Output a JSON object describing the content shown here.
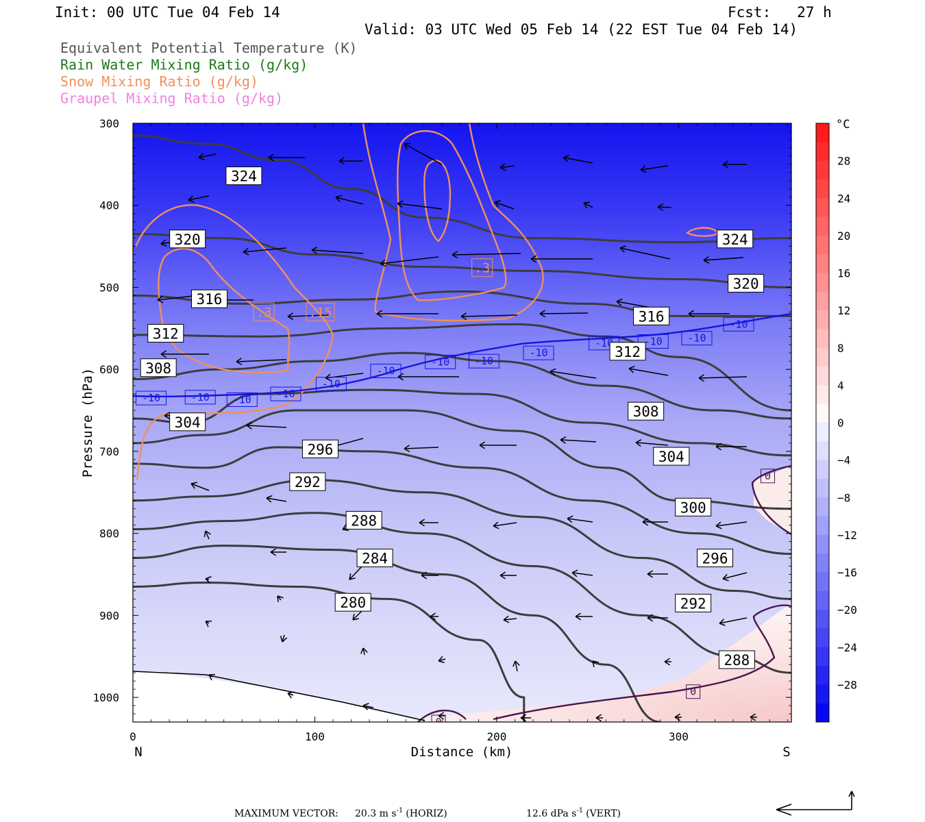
{
  "header": {
    "init": "Init: 00 UTC Tue 04 Feb 14",
    "fcst": "Fcst:   27 h",
    "valid": "Valid: 03 UTC Wed 05 Feb 14 (22 EST Tue 04 Feb 14)"
  },
  "legend": [
    {
      "label": "Equivalent Potential Temperature (K)",
      "color": "#555555"
    },
    {
      "label": "Rain Water Mixing Ratio (g/kg)",
      "color": "#1a7a1a"
    },
    {
      "label": "Snow Mixing Ratio (g/kg)",
      "color": "#f0905a"
    },
    {
      "label": "Graupel Mixing Ratio (g/kg)",
      "color": "#f080e0"
    }
  ],
  "chart_data": {
    "type": "cross-section",
    "xlabel": "Distance (km)",
    "ylabel": "Pressure (hPa)",
    "xlim": [
      0,
      362
    ],
    "ylim": [
      1030,
      300
    ],
    "x_ticks": [
      0,
      100,
      200,
      300
    ],
    "y_ticks": [
      300,
      400,
      500,
      600,
      700,
      800,
      900,
      1000
    ],
    "x_end_labels": {
      "left": "N",
      "right": "S"
    },
    "colorbar": {
      "unit": "°C",
      "ticks": [
        28,
        24,
        20,
        16,
        12,
        8,
        4,
        0,
        -4,
        -8,
        -12,
        -16,
        -20,
        -24,
        -28
      ],
      "range": [
        -32,
        32
      ]
    },
    "theta_e_contours": [
      {
        "value": 324,
        "points": [
          [
            0,
            315
          ],
          [
            40,
            325
          ],
          [
            80,
            345
          ],
          [
            120,
            380
          ],
          [
            160,
            415
          ],
          [
            220,
            440
          ],
          [
            300,
            445
          ],
          [
            362,
            440
          ]
        ],
        "label_at": [
          [
            61,
            364
          ],
          [
            331,
            441
          ]
        ]
      },
      {
        "value": 320,
        "points": [
          [
            0,
            435
          ],
          [
            50,
            440
          ],
          [
            100,
            460
          ],
          [
            160,
            475
          ],
          [
            220,
            480
          ],
          [
            300,
            490
          ],
          [
            362,
            500
          ]
        ],
        "label_at": [
          [
            30,
            441
          ],
          [
            337,
            495
          ]
        ]
      },
      {
        "value": 316,
        "points": [
          [
            0,
            510
          ],
          [
            60,
            520
          ],
          [
            120,
            515
          ],
          [
            180,
            505
          ],
          [
            250,
            520
          ],
          [
            300,
            535
          ],
          [
            362,
            535
          ]
        ],
        "label_at": [
          [
            42,
            514
          ],
          [
            285,
            535
          ]
        ]
      },
      {
        "value": 312,
        "points": [
          [
            0,
            558
          ],
          [
            70,
            560
          ],
          [
            140,
            550
          ],
          [
            210,
            545
          ],
          [
            260,
            560
          ],
          [
            300,
            585
          ],
          [
            362,
            650
          ]
        ],
        "label_at": [
          [
            18,
            556
          ],
          [
            272,
            578
          ]
        ]
      },
      {
        "value": 308,
        "points": [
          [
            0,
            612
          ],
          [
            50,
            600
          ],
          [
            100,
            590
          ],
          [
            150,
            580
          ],
          [
            200,
            590
          ],
          [
            260,
            620
          ],
          [
            320,
            650
          ],
          [
            362,
            660
          ]
        ],
        "label_at": [
          [
            14,
            598
          ],
          [
            282,
            651
          ]
        ]
      },
      {
        "value": 304,
        "points": [
          [
            0,
            660
          ],
          [
            30,
            665
          ],
          [
            70,
            630
          ],
          [
            130,
            625
          ],
          [
            190,
            630
          ],
          [
            250,
            665
          ],
          [
            310,
            690
          ],
          [
            362,
            705
          ]
        ],
        "label_at": [
          [
            30,
            664
          ],
          [
            296,
            706
          ]
        ]
      },
      {
        "value": 296,
        "points": [
          [
            0,
            715
          ],
          [
            40,
            720
          ],
          [
            80,
            695
          ],
          [
            130,
            700
          ],
          [
            190,
            720
          ],
          [
            250,
            760
          ],
          [
            310,
            800
          ],
          [
            362,
            825
          ]
        ],
        "label_at": [
          [
            103,
            697
          ],
          [
            320,
            830
          ]
        ]
      },
      {
        "value": 292,
        "points": [
          [
            0,
            760
          ],
          [
            40,
            755
          ],
          [
            100,
            735
          ],
          [
            160,
            750
          ],
          [
            220,
            780
          ],
          [
            280,
            830
          ],
          [
            330,
            870
          ],
          [
            362,
            880
          ]
        ],
        "label_at": [
          [
            96,
            737
          ],
          [
            308,
            885
          ]
        ]
      },
      {
        "value": 300,
        "points": [
          [
            0,
            690
          ],
          [
            40,
            680
          ],
          [
            90,
            650
          ],
          [
            150,
            650
          ],
          [
            210,
            675
          ],
          [
            260,
            720
          ],
          [
            300,
            760
          ],
          [
            362,
            770
          ]
        ],
        "label_at": [
          [
            308,
            768
          ]
        ]
      },
      {
        "value": 288,
        "points": [
          [
            0,
            795
          ],
          [
            50,
            785
          ],
          [
            100,
            775
          ],
          [
            160,
            800
          ],
          [
            220,
            840
          ],
          [
            280,
            900
          ],
          [
            330,
            950
          ],
          [
            362,
            970
          ]
        ],
        "label_at": [
          [
            127,
            784
          ],
          [
            332,
            954
          ]
        ]
      },
      {
        "value": 284,
        "points": [
          [
            0,
            830
          ],
          [
            50,
            815
          ],
          [
            110,
            820
          ],
          [
            170,
            850
          ],
          [
            220,
            900
          ],
          [
            260,
            960
          ],
          [
            290,
            1030
          ]
        ],
        "label_at": [
          [
            133,
            830
          ]
        ]
      },
      {
        "value": 280,
        "points": [
          [
            0,
            865
          ],
          [
            40,
            860
          ],
          [
            90,
            865
          ],
          [
            140,
            880
          ],
          [
            190,
            930
          ],
          [
            215,
            1000
          ],
          [
            215,
            1030
          ]
        ],
        "label_at": [
          [
            121,
            884
          ]
        ]
      }
    ],
    "snow_contours": [
      {
        "value": 0.15,
        "label_at": [
          [
            103,
            530
          ]
        ]
      },
      {
        "value": 0.3,
        "label_at": [
          [
            72,
            530
          ],
          [
            192,
            476
          ]
        ]
      }
    ],
    "isotherm_labels": [
      {
        "value": -10,
        "label_at": [
          [
            10,
            635
          ],
          [
            37,
            634
          ],
          [
            60,
            637
          ],
          [
            84,
            630
          ],
          [
            109,
            618
          ],
          [
            139,
            602
          ],
          [
            169,
            591
          ],
          [
            193,
            590
          ],
          [
            223,
            580
          ],
          [
            259,
            568
          ],
          [
            286,
            566
          ],
          [
            310,
            562
          ],
          [
            333,
            545
          ]
        ]
      },
      {
        "value": 0,
        "label_at": [
          [
            168,
            1030
          ],
          [
            308,
            993
          ],
          [
            349,
            730
          ]
        ]
      }
    ],
    "max_vector": {
      "horiz": "20.3 m s",
      "horiz_unit": "-1",
      "horiz_label": "(HORIZ)",
      "vert": "12.6 dPa s",
      "vert_unit": "-1",
      "vert_label": "(VERT)",
      "prefix": "MAXIMUM VECTOR:"
    }
  }
}
